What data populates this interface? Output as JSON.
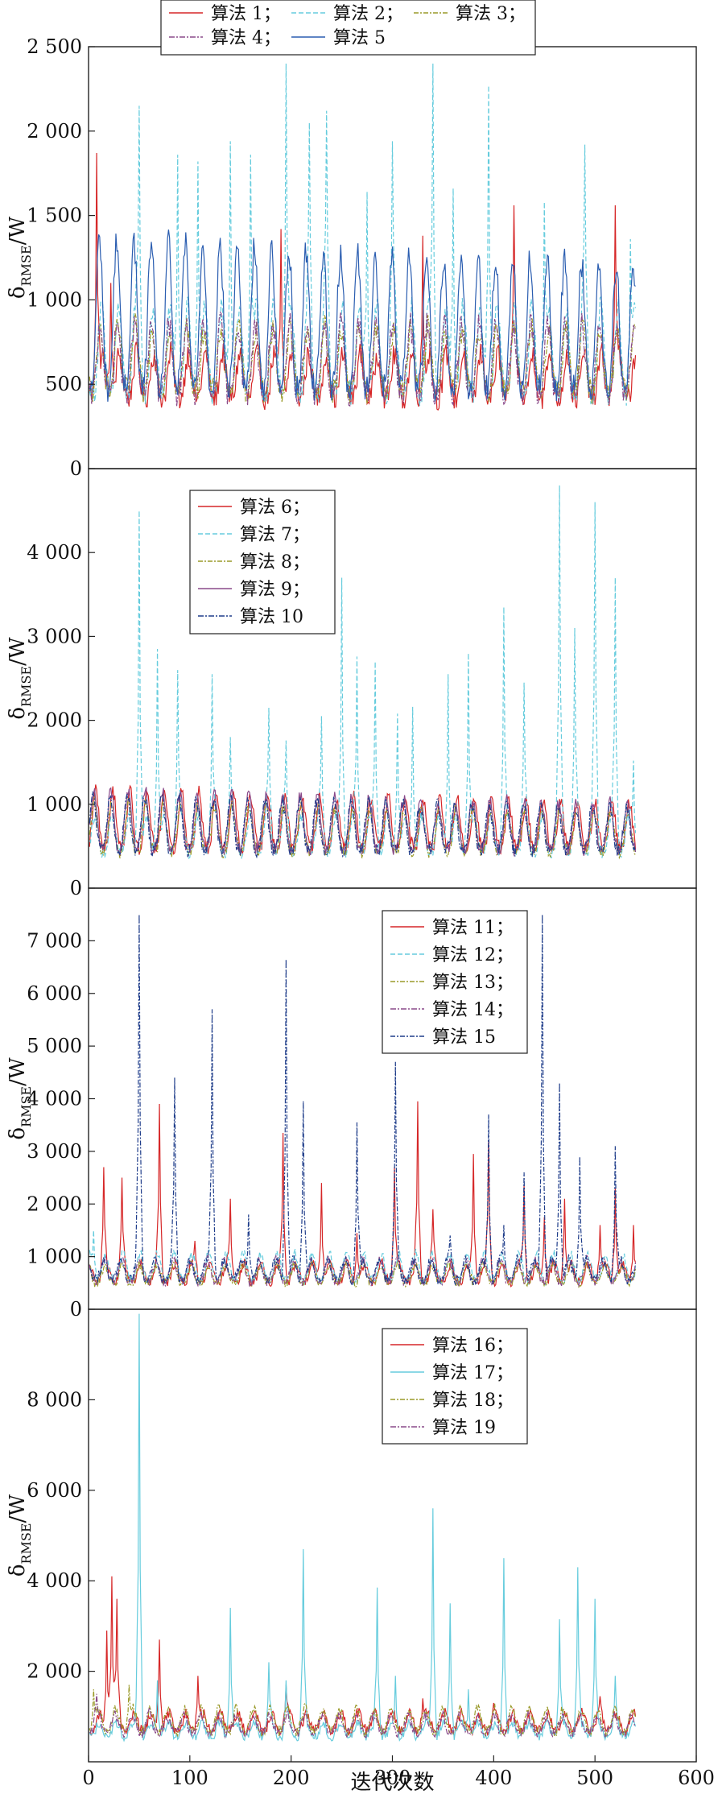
{
  "colors": {
    "red": "#d62728",
    "cyan": "#66ccdd",
    "olive": "#9a9a2a",
    "purple": "#8a4a8a",
    "navy": "#1f3d8a",
    "blue": "#2a5db0",
    "axis": "#222222"
  },
  "chart_data": [
    {
      "type": "line",
      "ylabel": "δRMSE/W",
      "ylabel_main": "δ",
      "ylabel_sub": "RMSE",
      "ylabel_unit": "/W",
      "ylim": [
        0,
        2500
      ],
      "yticks": [
        0,
        500,
        1000,
        1500,
        2000,
        2500
      ],
      "ytick_labels": [
        "0",
        "500",
        "1 000",
        "1 500",
        "2 000",
        "2 500"
      ],
      "legend_location": "top-center",
      "legend_labels": [
        "算法 1；",
        "算法 2；",
        "算法 3；",
        "算法 4；",
        "算法 5"
      ],
      "series": [
        {
          "name": "算法 1",
          "color": "red",
          "dash": "solid",
          "base": 420,
          "amp": 260,
          "period": 17,
          "spikes": [
            [
              8,
              1870
            ],
            [
              22,
              1100
            ],
            [
              190,
              1420
            ],
            [
              330,
              1380
            ],
            [
              420,
              1560
            ],
            [
              520,
              1560
            ]
          ]
        },
        {
          "name": "算法 2",
          "color": "cyan",
          "dash": "6,3",
          "base": 450,
          "amp": 500,
          "period": 17,
          "spikes": [
            [
              50,
              2150
            ],
            [
              88,
              1860
            ],
            [
              108,
              1820
            ],
            [
              140,
              1940
            ],
            [
              160,
              1860
            ],
            [
              195,
              2400
            ],
            [
              218,
              2050
            ],
            [
              235,
              2120
            ],
            [
              275,
              1640
            ],
            [
              300,
              1940
            ],
            [
              340,
              2400
            ],
            [
              360,
              1660
            ],
            [
              395,
              2270
            ],
            [
              450,
              1580
            ],
            [
              490,
              1920
            ],
            [
              535,
              1360
            ]
          ]
        },
        {
          "name": "算法 3",
          "color": "olive",
          "dash": "6,2,2,2",
          "base": 460,
          "amp": 380,
          "period": 17,
          "spikes": []
        },
        {
          "name": "算法 4",
          "color": "purple",
          "dash": "7,2,2,2",
          "base": 440,
          "amp": 420,
          "period": 17,
          "spikes": []
        },
        {
          "name": "算法 5",
          "color": "blue",
          "dash": "solid",
          "base": 480,
          "amp": 900,
          "period": 17,
          "decay": 0.0009,
          "spikes": []
        }
      ]
    },
    {
      "type": "line",
      "ylabel": "δRMSE/W",
      "ylabel_main": "δ",
      "ylabel_sub": "RMSE",
      "ylabel_unit": "/W",
      "ylim": [
        0,
        5000
      ],
      "yticks": [
        0,
        1000,
        2000,
        3000,
        4000
      ],
      "ytick_labels": [
        "0",
        "1 000",
        "2 000",
        "3 000",
        "4 000"
      ],
      "legend_location": "top-left",
      "legend_labels": [
        "算法 6；",
        "算法 7；",
        "算法 8；",
        "算法 9；",
        "算法 10"
      ],
      "series": [
        {
          "name": "算法 6",
          "color": "red",
          "dash": "solid",
          "base": 480,
          "amp": 700,
          "period": 17,
          "decay": 0.0012,
          "spikes": []
        },
        {
          "name": "算法 7",
          "color": "cyan",
          "dash": "6,3",
          "base": 420,
          "amp": 450,
          "period": 17,
          "spikes": [
            [
              50,
              4500
            ],
            [
              68,
              2850
            ],
            [
              88,
              2600
            ],
            [
              122,
              2550
            ],
            [
              140,
              1800
            ],
            [
              178,
              2150
            ],
            [
              195,
              1760
            ],
            [
              230,
              2050
            ],
            [
              250,
              3700
            ],
            [
              265,
              2760
            ],
            [
              283,
              2700
            ],
            [
              305,
              2080
            ],
            [
              320,
              2160
            ],
            [
              355,
              2550
            ],
            [
              375,
              2800
            ],
            [
              410,
              3350
            ],
            [
              430,
              2450
            ],
            [
              465,
              4800
            ],
            [
              480,
              3100
            ],
            [
              500,
              4600
            ],
            [
              520,
              3700
            ],
            [
              538,
              1520
            ]
          ]
        },
        {
          "name": "算法 8",
          "color": "olive",
          "dash": "6,2,2,2",
          "base": 430,
          "amp": 600,
          "period": 17,
          "decay": 0.001,
          "spikes": []
        },
        {
          "name": "算法 9",
          "color": "purple",
          "dash": "solid",
          "base": 460,
          "amp": 720,
          "period": 17,
          "decay": 0.0012,
          "spikes": []
        },
        {
          "name": "算法 10",
          "color": "navy",
          "dash": "7,2,2,2",
          "base": 450,
          "amp": 650,
          "period": 17,
          "decay": 0.001,
          "spikes": []
        }
      ]
    },
    {
      "type": "line",
      "ylabel": "δRMSE/W",
      "ylabel_main": "δ",
      "ylabel_sub": "RMSE",
      "ylabel_unit": "/W",
      "ylim": [
        0,
        8000
      ],
      "yticks": [
        0,
        1000,
        2000,
        3000,
        4000,
        5000,
        6000,
        7000
      ],
      "ytick_labels": [
        "0",
        "1 000",
        "2 000",
        "3 000",
        "4 000",
        "5 000",
        "6 000",
        "7 000"
      ],
      "legend_location": "top-center",
      "legend_labels": [
        "算法 11；",
        "算法 12；",
        "算法 13；",
        "算法 14；",
        "算法 15"
      ],
      "series": [
        {
          "name": "算法 11",
          "color": "red",
          "dash": "solid",
          "base": 520,
          "amp": 350,
          "period": 17,
          "spikes": [
            [
              15,
              2700
            ],
            [
              33,
              2500
            ],
            [
              70,
              3900
            ],
            [
              105,
              1300
            ],
            [
              140,
              2100
            ],
            [
              192,
              3350
            ],
            [
              230,
              2400
            ],
            [
              265,
              1450
            ],
            [
              302,
              2700
            ],
            [
              325,
              3950
            ],
            [
              340,
              1900
            ],
            [
              380,
              2950
            ],
            [
              395,
              3200
            ],
            [
              430,
              2350
            ],
            [
              450,
              1750
            ],
            [
              470,
              2100
            ],
            [
              505,
              1600
            ],
            [
              520,
              2300
            ],
            [
              538,
              1600
            ]
          ]
        },
        {
          "name": "算法 12",
          "color": "cyan",
          "dash": "6,3",
          "base": 560,
          "amp": 500,
          "period": 17,
          "spikes": [
            [
              5,
              1500
            ],
            [
              50,
              900
            ]
          ]
        },
        {
          "name": "算法 13",
          "color": "olive",
          "dash": "6,2,2,2",
          "base": 500,
          "amp": 350,
          "period": 17,
          "spikes": []
        },
        {
          "name": "算法 14",
          "color": "purple",
          "dash": "7,2,2,2",
          "base": 520,
          "amp": 420,
          "period": 17,
          "spikes": []
        },
        {
          "name": "算法 15",
          "color": "navy",
          "dash": "6,2,2,2",
          "base": 560,
          "amp": 380,
          "period": 17,
          "spikes": [
            [
              50,
              7500
            ],
            [
              85,
              4400
            ],
            [
              122,
              5700
            ],
            [
              158,
              1800
            ],
            [
              195,
              6650
            ],
            [
              212,
              3950
            ],
            [
              265,
              3550
            ],
            [
              303,
              4700
            ],
            [
              357,
              1400
            ],
            [
              395,
              3700
            ],
            [
              410,
              1600
            ],
            [
              430,
              2600
            ],
            [
              448,
              7500
            ],
            [
              465,
              4300
            ],
            [
              485,
              2900
            ],
            [
              520,
              3100
            ]
          ]
        }
      ]
    },
    {
      "type": "line",
      "ylabel": "δRMSE/W",
      "ylabel_main": "δ",
      "ylabel_sub": "RMSE",
      "ylabel_unit": "/W",
      "xlabel": "迭代次数",
      "xlim": [
        0,
        600
      ],
      "xticks": [
        0,
        100,
        200,
        300,
        400,
        500,
        600
      ],
      "xtick_labels": [
        "0",
        "100",
        "200",
        "300",
        "400",
        "500",
        "600"
      ],
      "ylim": [
        0,
        10000
      ],
      "yticks": [
        2000,
        4000,
        6000,
        8000
      ],
      "ytick_labels": [
        "2 000",
        "4 000",
        "6 000",
        "8 000"
      ],
      "legend_location": "top-center",
      "legend_labels": [
        "算法 16；",
        "算法 17；",
        "算法 18；",
        "算法 19"
      ],
      "series": [
        {
          "name": "算法 16",
          "color": "red",
          "dash": "solid",
          "base": 700,
          "amp": 380,
          "period": 17,
          "spikes": [
            [
              18,
              2900
            ],
            [
              23,
              4100
            ],
            [
              28,
              3600
            ],
            [
              70,
              2700
            ],
            [
              108,
              1900
            ],
            [
              195,
              1700
            ],
            [
              330,
              1400
            ],
            [
              400,
              1300
            ],
            [
              505,
              1450
            ]
          ]
        },
        {
          "name": "算法 17",
          "color": "cyan",
          "dash": "solid",
          "base": 560,
          "amp": 300,
          "period": 17,
          "spikes": [
            [
              50,
              9900
            ],
            [
              68,
              1800
            ],
            [
              140,
              3400
            ],
            [
              178,
              2200
            ],
            [
              195,
              1800
            ],
            [
              212,
              4700
            ],
            [
              285,
              3850
            ],
            [
              303,
              1900
            ],
            [
              340,
              5600
            ],
            [
              357,
              3500
            ],
            [
              375,
              1600
            ],
            [
              410,
              4500
            ],
            [
              465,
              3150
            ],
            [
              483,
              4300
            ],
            [
              500,
              3600
            ],
            [
              520,
              1900
            ]
          ]
        },
        {
          "name": "算法 18",
          "color": "olive",
          "dash": "6,2,2,2",
          "base": 680,
          "amp": 500,
          "period": 17,
          "spikes": [
            [
              5,
              1600
            ],
            [
              40,
              1700
            ]
          ]
        },
        {
          "name": "算法 19",
          "color": "purple",
          "dash": "7,2,2,2",
          "base": 640,
          "amp": 380,
          "period": 17,
          "spikes": [
            [
              8,
              1500
            ],
            [
              60,
              1200
            ]
          ]
        }
      ]
    }
  ]
}
